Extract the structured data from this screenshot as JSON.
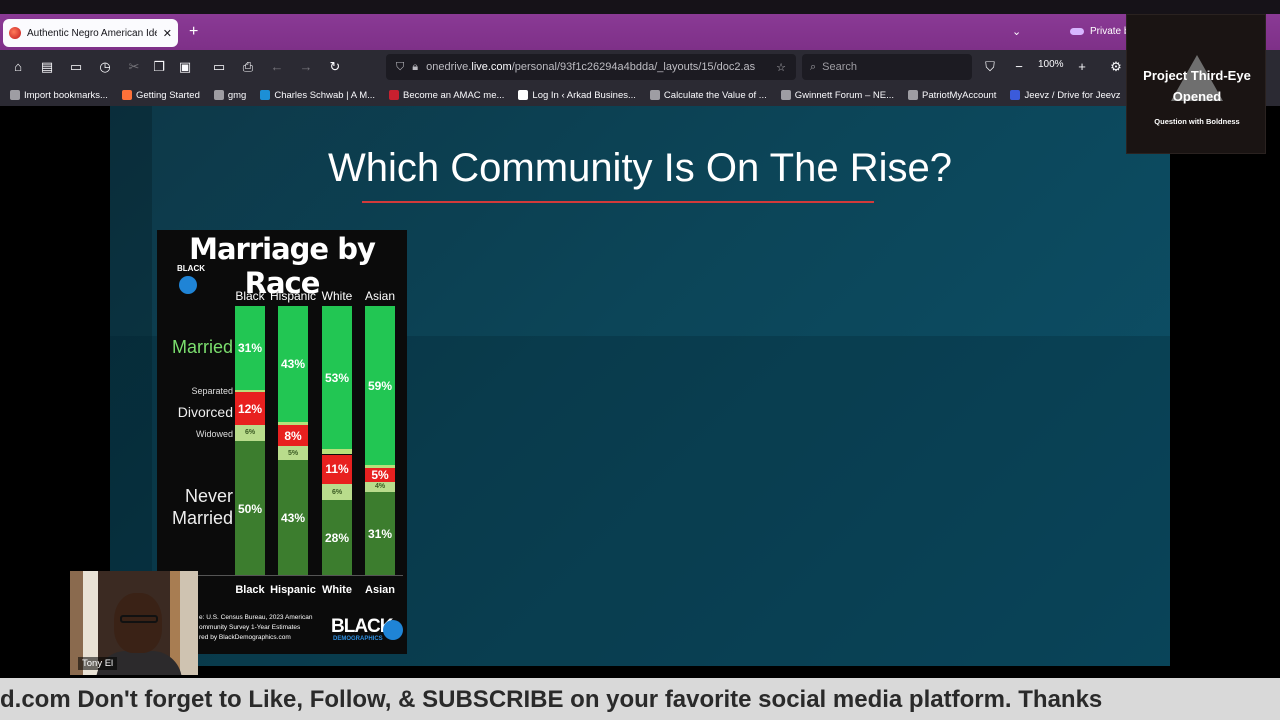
{
  "browser": {
    "tab_title": "Authentic Negro American Iden",
    "new_tab": "+",
    "private_label": "Private b",
    "url_prefix": "onedrive.",
    "url_domain": "live.com",
    "url_path": "/personal/93f1c26294a4bdda/_layouts/15/doc2.as",
    "search_placeholder": "Search",
    "zoom": "100%"
  },
  "bookmarks": [
    {
      "label": "Import bookmarks...",
      "color": "#9e9da3"
    },
    {
      "label": "Getting Started",
      "color": "#ff7139"
    },
    {
      "label": "gmg",
      "color": "#9e9da3"
    },
    {
      "label": "Charles Schwab | A M...",
      "color": "#1c8fd6"
    },
    {
      "label": "Become an AMAC me...",
      "color": "#c8202f"
    },
    {
      "label": "Log In ‹ Arkad Busines...",
      "color": "#ffffff"
    },
    {
      "label": "Calculate the Value of ...",
      "color": "#9e9da3"
    },
    {
      "label": "Gwinnett Forum – NE...",
      "color": "#9e9da3"
    },
    {
      "label": "PatriotMyAccount",
      "color": "#9e9da3"
    },
    {
      "label": "Jeevz / Drive for Jeevz",
      "color": "#3b5bdb"
    }
  ],
  "slide": {
    "title": "Which Community Is On The Rise?"
  },
  "infographic": {
    "title": "Marriage by Race",
    "logo_small": "BLACK",
    "row_labels": {
      "married": "Married",
      "separated": "Separated",
      "divorced": "Divorced",
      "widowed": "Widowed",
      "never_married_1": "Never",
      "never_married_2": "Married"
    },
    "columns": [
      {
        "name": "Black",
        "married": "31%",
        "divorced": "12%",
        "widowed": "6%",
        "never": "50%"
      },
      {
        "name": "Hispanic",
        "married": "43%",
        "divorced": "8%",
        "widowed": "5%",
        "never": "43%"
      },
      {
        "name": "White",
        "married": "53%",
        "divorced": "11%",
        "widowed": "6%",
        "never": "28%"
      },
      {
        "name": "Asian",
        "married": "59%",
        "divorced": "5%",
        "widowed": "4%",
        "never": "31%"
      }
    ],
    "source_1": "e: U.S. Census Bureau, 2023 American",
    "source_2": "ommunity Survey 1-Year Estimates",
    "source_3": "red by BlackDemographics.com",
    "brand": "BLACK",
    "brand_sub": "DEMOGRAPHICS"
  },
  "webcam": {
    "name": "Tony El"
  },
  "channel_logo": {
    "line1": "Project Third-Eye",
    "line2": "Opened",
    "line3": "Question with Boldness"
  },
  "ticker": {
    "text": "d.com Don't forget to Like, Follow, & SUBSCRIBE on your favorite social media platform. Thanks"
  }
}
